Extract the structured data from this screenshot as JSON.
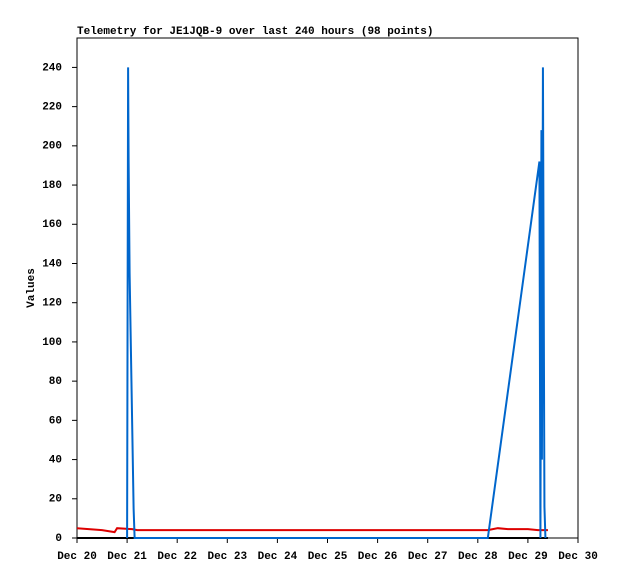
{
  "chart_data": {
    "type": "line",
    "title": "Telemetry for JE1JQB-9 over last 240 hours (98 points)",
    "ylabel": "Values",
    "xlim": [
      20,
      30
    ],
    "xticks": [
      {
        "value": 20,
        "label": "Dec 20"
      },
      {
        "value": 21,
        "label": "Dec 21"
      },
      {
        "value": 22,
        "label": "Dec 22"
      },
      {
        "value": 23,
        "label": "Dec 23"
      },
      {
        "value": 24,
        "label": "Dec 24"
      },
      {
        "value": 25,
        "label": "Dec 25"
      },
      {
        "value": 26,
        "label": "Dec 26"
      },
      {
        "value": 27,
        "label": "Dec 27"
      },
      {
        "value": 28,
        "label": "Dec 28"
      },
      {
        "value": 29,
        "label": "Dec 29"
      },
      {
        "value": 30,
        "label": "Dec 30"
      }
    ],
    "ylim": [
      0,
      255
    ],
    "yticks": [
      0,
      20,
      40,
      60,
      80,
      100,
      120,
      140,
      160,
      180,
      200,
      220,
      240
    ],
    "grid": false,
    "series": [
      {
        "color": "#000000",
        "x": [
          20.0,
          29.4
        ],
        "values": [
          0,
          0
        ]
      },
      {
        "color": "#dd0000",
        "x": [
          20.0,
          20.5,
          20.75,
          20.8,
          21.1,
          21.2,
          28.2,
          28.4,
          28.6,
          29.0,
          29.2,
          29.4
        ],
        "values": [
          5,
          4,
          3,
          5,
          4.5,
          4,
          4,
          5,
          4.5,
          4.5,
          4,
          4
        ]
      },
      {
        "color": "#0066cc",
        "x": [
          21.0,
          21.02,
          21.03,
          21.04,
          21.05,
          21.07,
          21.09,
          21.11,
          21.13,
          21.15,
          28.2,
          29.23,
          29.25,
          29.27,
          29.28,
          29.3,
          29.33,
          29.35
        ],
        "values": [
          0,
          240,
          193,
          163,
          135,
          105,
          75,
          45,
          15,
          0,
          0,
          192,
          0,
          208,
          40,
          240,
          16,
          0
        ]
      }
    ]
  }
}
